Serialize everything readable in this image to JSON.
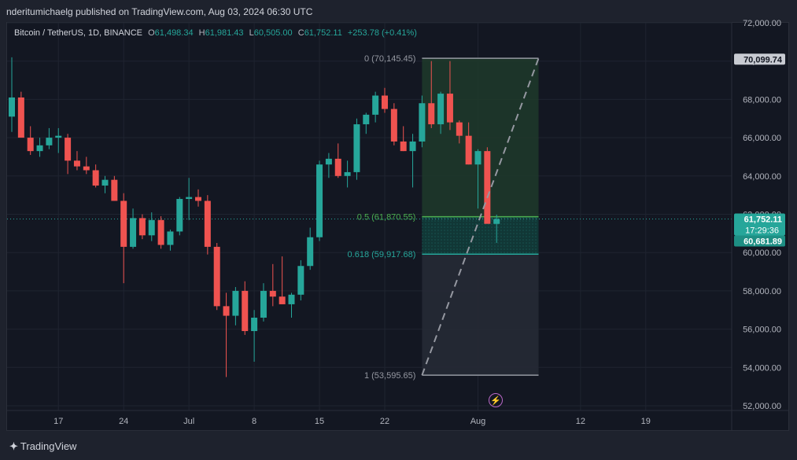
{
  "header": {
    "publisher_line": "nderitumichaelg published on TradingView.com, Aug 03, 2024 06:30 UTC"
  },
  "legend": {
    "symbol": "Bitcoin / TetherUS, 1D, BINANCE",
    "o_label": "O",
    "o_value": "61,498.34",
    "h_label": "H",
    "h_value": "61,981.43",
    "l_label": "L",
    "l_value": "60,505.00",
    "c_label": "C",
    "c_value": "61,752.11",
    "change": "+253.78 (+0.41%)"
  },
  "footer": {
    "brand": "TradingView"
  },
  "colors": {
    "background": "#131722",
    "up": "#26a69a",
    "down": "#ef5350",
    "fib_upper_zone": "#1e3a2a",
    "fib_mid_zone": "#123b38",
    "fib_lower_zone": "#262a35",
    "fib_05": "#4caf50",
    "fib_0618": "#26a69a",
    "fib_edge": "#9598a1"
  },
  "chart_data": {
    "type": "candlestick",
    "title": "Bitcoin / TetherUS, 1D, BINANCE",
    "ylim": [
      51800,
      72300
    ],
    "y_ticks": [
      52000,
      54000,
      56000,
      58000,
      60000,
      62000,
      64000,
      66000,
      68000,
      70000,
      72000
    ],
    "y_tick_labels": [
      "52,000.00",
      "54,000.00",
      "56,000.00",
      "58,000.00",
      "60,000.00",
      "62,000.00",
      "64,000.00",
      "66,000.00",
      "68,000.00",
      "70,000.00",
      "72,000.00"
    ],
    "x_tick_labels": [
      {
        "label": "17",
        "day": 5
      },
      {
        "label": "24",
        "day": 12
      },
      {
        "label": "Jul",
        "day": 19
      },
      {
        "label": "8",
        "day": 26
      },
      {
        "label": "15",
        "day": 33
      },
      {
        "label": "22",
        "day": 40
      },
      {
        "label": "Aug",
        "day": 50
      },
      {
        "label": "12",
        "day": 61
      },
      {
        "label": "19",
        "day": 68
      }
    ],
    "candles": [
      {
        "o": 67100,
        "h": 70200,
        "l": 66300,
        "c": 68100
      },
      {
        "o": 68100,
        "h": 68400,
        "l": 66200,
        "c": 66000
      },
      {
        "o": 66000,
        "h": 66600,
        "l": 65100,
        "c": 65300
      },
      {
        "o": 65300,
        "h": 66000,
        "l": 65000,
        "c": 65600
      },
      {
        "o": 65600,
        "h": 66500,
        "l": 65400,
        "c": 66000
      },
      {
        "o": 66000,
        "h": 66500,
        "l": 65200,
        "c": 66100
      },
      {
        "o": 66000,
        "h": 66200,
        "l": 64100,
        "c": 64800
      },
      {
        "o": 64800,
        "h": 65300,
        "l": 64300,
        "c": 64500
      },
      {
        "o": 64500,
        "h": 65000,
        "l": 64100,
        "c": 64300
      },
      {
        "o": 64300,
        "h": 64600,
        "l": 63400,
        "c": 63500
      },
      {
        "o": 63500,
        "h": 64000,
        "l": 63100,
        "c": 63800
      },
      {
        "o": 63800,
        "h": 64000,
        "l": 62700,
        "c": 62700
      },
      {
        "o": 62700,
        "h": 63100,
        "l": 58400,
        "c": 60300
      },
      {
        "o": 60300,
        "h": 62300,
        "l": 60200,
        "c": 61800
      },
      {
        "o": 61800,
        "h": 62000,
        "l": 60700,
        "c": 60900
      },
      {
        "o": 60900,
        "h": 62100,
        "l": 60600,
        "c": 61700
      },
      {
        "o": 61700,
        "h": 61900,
        "l": 60200,
        "c": 60400
      },
      {
        "o": 60400,
        "h": 61200,
        "l": 60100,
        "c": 61100
      },
      {
        "o": 61100,
        "h": 62900,
        "l": 60900,
        "c": 62800
      },
      {
        "o": 62800,
        "h": 63900,
        "l": 61700,
        "c": 62900
      },
      {
        "o": 62900,
        "h": 63300,
        "l": 62400,
        "c": 62700
      },
      {
        "o": 62700,
        "h": 63000,
        "l": 59900,
        "c": 60300
      },
      {
        "o": 60300,
        "h": 60500,
        "l": 57000,
        "c": 57200
      },
      {
        "o": 57200,
        "h": 57900,
        "l": 53500,
        "c": 56700
      },
      {
        "o": 56700,
        "h": 58200,
        "l": 56200,
        "c": 58000
      },
      {
        "o": 58000,
        "h": 58500,
        "l": 55700,
        "c": 55900
      },
      {
        "o": 55900,
        "h": 57000,
        "l": 54300,
        "c": 56600
      },
      {
        "o": 56600,
        "h": 58400,
        "l": 56400,
        "c": 58000
      },
      {
        "o": 58000,
        "h": 59400,
        "l": 57200,
        "c": 57700
      },
      {
        "o": 57700,
        "h": 59800,
        "l": 57300,
        "c": 57300
      },
      {
        "o": 57300,
        "h": 57900,
        "l": 56600,
        "c": 57800
      },
      {
        "o": 57800,
        "h": 59600,
        "l": 57500,
        "c": 59300
      },
      {
        "o": 59300,
        "h": 61300,
        "l": 59100,
        "c": 60800
      },
      {
        "o": 60800,
        "h": 64800,
        "l": 60600,
        "c": 64600
      },
      {
        "o": 64600,
        "h": 65200,
        "l": 63900,
        "c": 64900
      },
      {
        "o": 64900,
        "h": 65700,
        "l": 63900,
        "c": 64000
      },
      {
        "o": 64000,
        "h": 64800,
        "l": 63400,
        "c": 64200
      },
      {
        "o": 64200,
        "h": 67000,
        "l": 63800,
        "c": 66700
      },
      {
        "o": 66700,
        "h": 67300,
        "l": 66200,
        "c": 67200
      },
      {
        "o": 67200,
        "h": 68400,
        "l": 66800,
        "c": 68200
      },
      {
        "o": 68200,
        "h": 68600,
        "l": 67300,
        "c": 67500
      },
      {
        "o": 67500,
        "h": 67800,
        "l": 65600,
        "c": 65800
      },
      {
        "o": 65800,
        "h": 66600,
        "l": 65300,
        "c": 65300
      },
      {
        "o": 65300,
        "h": 66200,
        "l": 63400,
        "c": 65800
      },
      {
        "o": 65800,
        "h": 68200,
        "l": 65500,
        "c": 67800
      },
      {
        "o": 67800,
        "h": 70000,
        "l": 66500,
        "c": 66700
      },
      {
        "o": 66700,
        "h": 68400,
        "l": 66200,
        "c": 68300
      },
      {
        "o": 68300,
        "h": 70000,
        "l": 66400,
        "c": 66800
      },
      {
        "o": 66800,
        "h": 66900,
        "l": 65700,
        "c": 66100
      },
      {
        "o": 66100,
        "h": 66800,
        "l": 64600,
        "c": 64600
      },
      {
        "o": 64600,
        "h": 65400,
        "l": 62300,
        "c": 65300
      },
      {
        "o": 65300,
        "h": 65500,
        "l": 61600,
        "c": 61500
      },
      {
        "o": 61498.34,
        "h": 61981.43,
        "l": 60505.0,
        "c": 61752.11
      }
    ],
    "fibonacci": {
      "levels": [
        {
          "ratio": "0",
          "label": "0 (70,145.45)",
          "price": 70145.45
        },
        {
          "ratio": "0.5",
          "label": "0.5 (61,870.55)",
          "price": 61870.55
        },
        {
          "ratio": "0.618",
          "label": "0.618 (59,917.68)",
          "price": 59917.68
        },
        {
          "ratio": "1",
          "label": "1 (53,595.65)",
          "price": 53595.65
        }
      ],
      "start_day": 44,
      "end_day": 56.5
    },
    "trend_line": {
      "from": {
        "day": 44,
        "price": 53595.65
      },
      "to": {
        "day": 56.5,
        "price": 70145.45
      }
    },
    "last_price_line": 61752.11,
    "price_tags": [
      {
        "text": "70,099.74",
        "price": 70099.74,
        "style": "grey"
      },
      {
        "text": "61,752.11",
        "price": 61752.11,
        "style": "teal",
        "sub": "17:29:36"
      },
      {
        "text": "60,681.89",
        "price": 60681.89,
        "style": "teal-dark"
      }
    ]
  }
}
